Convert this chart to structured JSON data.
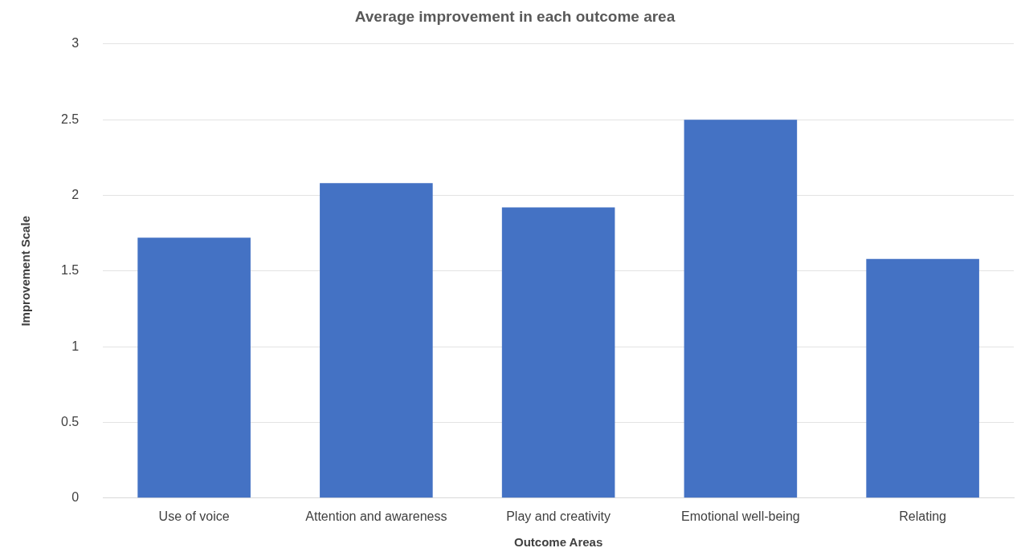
{
  "chart_data": {
    "type": "bar",
    "title": "Average improvement in each outcome area",
    "xlabel": "Outcome Areas",
    "ylabel": "Improvement Scale",
    "categories": [
      "Use of voice",
      "Attention and awareness",
      "Play and creativity",
      "Emotional well-being",
      "Relating"
    ],
    "values": [
      1.72,
      2.08,
      1.92,
      2.5,
      1.58
    ],
    "color": "#4472c4",
    "ylim": [
      0,
      3
    ],
    "yticks": [
      0,
      0.5,
      1,
      1.5,
      2,
      2.5,
      3
    ],
    "grid": "y",
    "legend": false
  }
}
